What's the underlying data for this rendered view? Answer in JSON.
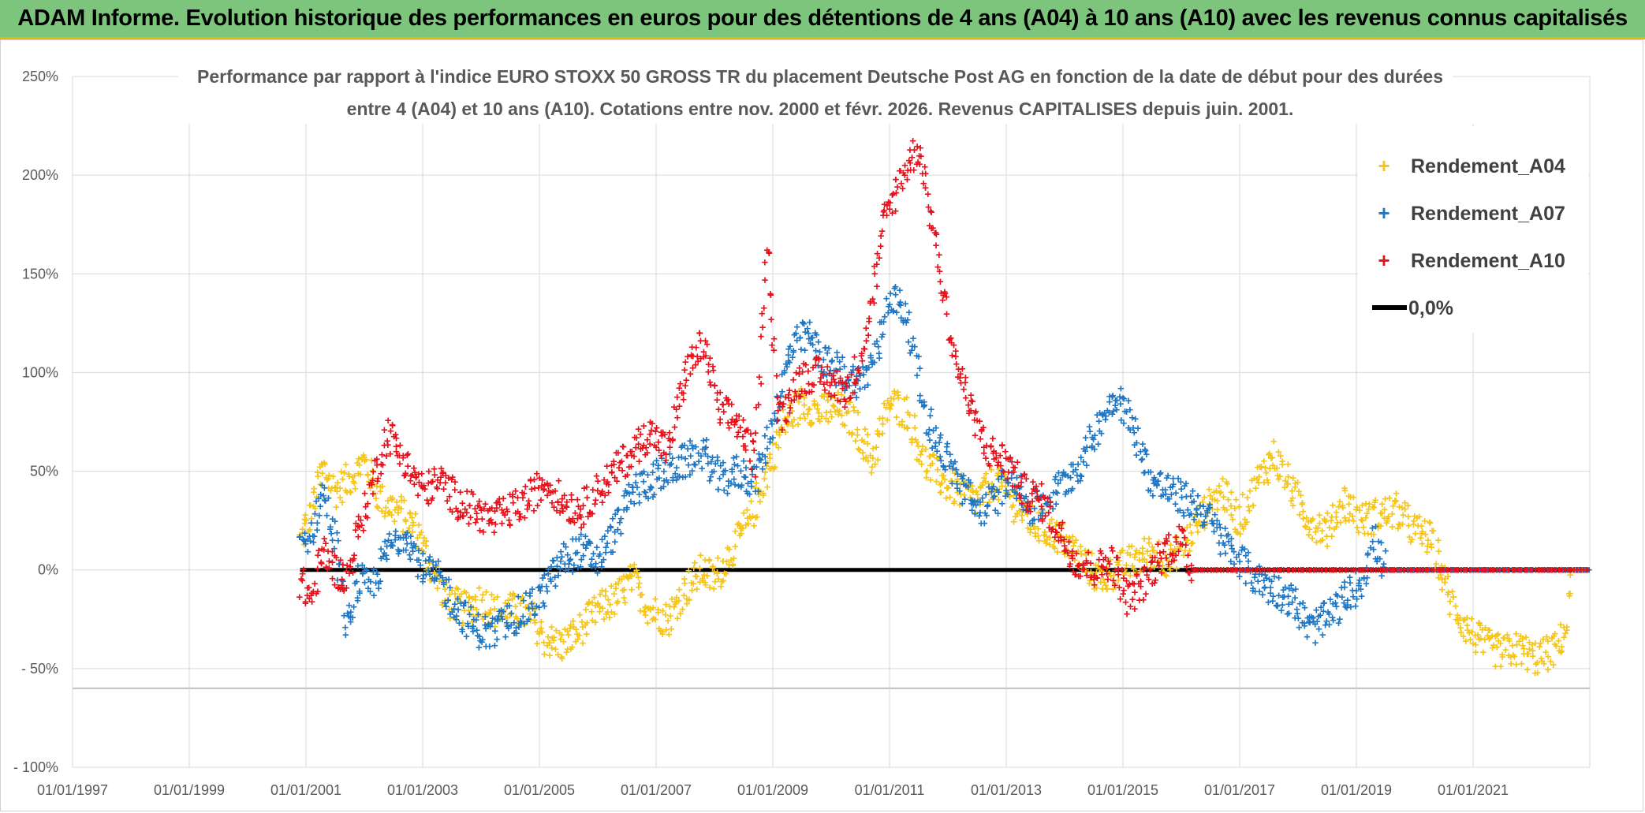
{
  "banner": {
    "title": "ADAM Informe. Evolution historique des performances en euros pour des détentions de 4 ans (A04) à 10 ans (A10) avec les revenus connus capitalisés"
  },
  "colors": {
    "banner_bg": "#7dc57d",
    "a04": "#f5c518",
    "a07": "#1f77c4",
    "a10": "#e8101a",
    "zero": "#000000"
  },
  "chart_data": {
    "type": "scatter",
    "title_line1": "Performance par rapport à l'indice EURO STOXX 50 GROSS TR  du placement Deutsche Post AG en fonction de la date de début pour des durées",
    "title_line2": "entre 4 (A04) et 10 ans (A10). Cotations entre nov. 2000 et févr. 2026. Revenus CAPITALISES depuis juin. 2001.",
    "x_domain_years": [
      1997.0,
      2023.0
    ],
    "x_ticks": [
      {
        "year": 1997,
        "label": "01/01/1997"
      },
      {
        "year": 1999,
        "label": "01/01/1999"
      },
      {
        "year": 2001,
        "label": "01/01/2001"
      },
      {
        "year": 2003,
        "label": "01/01/2003"
      },
      {
        "year": 2005,
        "label": "01/01/2005"
      },
      {
        "year": 2007,
        "label": "01/01/2007"
      },
      {
        "year": 2009,
        "label": "01/01/2009"
      },
      {
        "year": 2011,
        "label": "01/01/2011"
      },
      {
        "year": 2013,
        "label": "01/01/2013"
      },
      {
        "year": 2015,
        "label": "01/01/2015"
      },
      {
        "year": 2017,
        "label": "01/01/2017"
      },
      {
        "year": 2019,
        "label": "01/01/2019"
      },
      {
        "year": 2021,
        "label": "01/01/2021"
      }
    ],
    "y_domain_pct": [
      -100,
      250
    ],
    "y_ticks": [
      {
        "value": 250,
        "label": "250%"
      },
      {
        "value": 200,
        "label": "200%"
      },
      {
        "value": 150,
        "label": "150%"
      },
      {
        "value": 100,
        "label": "100%"
      },
      {
        "value": 50,
        "label": "50%"
      },
      {
        "value": 0,
        "label": "0%"
      },
      {
        "value": -50,
        "label": "- 50%"
      },
      {
        "value": -100,
        "label": "- 100%"
      }
    ],
    "legend": [
      {
        "key": "a04",
        "label": "Rendement_A04",
        "marker": "+"
      },
      {
        "key": "a07",
        "label": "Rendement_A07",
        "marker": "+"
      },
      {
        "key": "a10",
        "label": "Rendement_A10",
        "marker": "+"
      },
      {
        "key": "zero",
        "label": "0,0%",
        "marker": "line"
      }
    ],
    "zero_line": {
      "value": 0,
      "x_start": 2000.9,
      "x_end": 2023.0
    },
    "series": [
      {
        "key": "a04",
        "name": "Rendement_A04",
        "points": [
          [
            2000.9,
            15
          ],
          [
            2001.1,
            30
          ],
          [
            2001.3,
            52
          ],
          [
            2001.5,
            40
          ],
          [
            2001.7,
            45
          ],
          [
            2002.0,
            55
          ],
          [
            2002.3,
            35
          ],
          [
            2002.6,
            30
          ],
          [
            2002.9,
            20
          ],
          [
            2003.1,
            5
          ],
          [
            2003.4,
            -15
          ],
          [
            2003.7,
            -20
          ],
          [
            2004.0,
            -15
          ],
          [
            2004.3,
            -22
          ],
          [
            2004.6,
            -20
          ],
          [
            2004.9,
            -25
          ],
          [
            2005.1,
            -35
          ],
          [
            2005.4,
            -38
          ],
          [
            2005.7,
            -30
          ],
          [
            2006.0,
            -20
          ],
          [
            2006.3,
            -15
          ],
          [
            2006.6,
            -5
          ],
          [
            2006.9,
            -20
          ],
          [
            2007.2,
            -25
          ],
          [
            2007.5,
            -10
          ],
          [
            2007.8,
            0
          ],
          [
            2008.0,
            -5
          ],
          [
            2008.3,
            10
          ],
          [
            2008.6,
            25
          ],
          [
            2008.9,
            50
          ],
          [
            2009.2,
            75
          ],
          [
            2009.5,
            85
          ],
          [
            2009.8,
            80
          ],
          [
            2010.1,
            82
          ],
          [
            2010.4,
            75
          ],
          [
            2010.7,
            55
          ],
          [
            2011.0,
            85
          ],
          [
            2011.3,
            80
          ],
          [
            2011.6,
            55
          ],
          [
            2011.9,
            45
          ],
          [
            2012.2,
            40
          ],
          [
            2012.5,
            35
          ],
          [
            2012.8,
            45
          ],
          [
            2013.1,
            35
          ],
          [
            2013.4,
            25
          ],
          [
            2013.7,
            20
          ],
          [
            2014.0,
            15
          ],
          [
            2014.3,
            5
          ],
          [
            2014.6,
            -5
          ],
          [
            2014.9,
            0
          ],
          [
            2015.2,
            5
          ],
          [
            2015.5,
            10
          ],
          [
            2015.8,
            5
          ],
          [
            2016.1,
            15
          ],
          [
            2016.4,
            30
          ],
          [
            2016.7,
            40
          ],
          [
            2017.0,
            25
          ],
          [
            2017.3,
            45
          ],
          [
            2017.6,
            58
          ],
          [
            2017.9,
            40
          ],
          [
            2018.2,
            25
          ],
          [
            2018.5,
            20
          ],
          [
            2018.8,
            35
          ],
          [
            2019.1,
            25
          ],
          [
            2019.4,
            28
          ],
          [
            2019.7,
            30
          ],
          [
            2020.0,
            20
          ],
          [
            2020.3,
            15
          ],
          [
            2020.6,
            -15
          ],
          [
            2020.9,
            -30
          ],
          [
            2021.2,
            -38
          ],
          [
            2021.5,
            -42
          ],
          [
            2021.8,
            -40
          ],
          [
            2022.1,
            -45
          ],
          [
            2022.4,
            -40
          ],
          [
            2022.6,
            -30
          ],
          [
            2022.7,
            0
          ],
          [
            2023.0,
            0
          ]
        ]
      },
      {
        "key": "a07",
        "name": "Rendement_A07",
        "points": [
          [
            2000.9,
            10
          ],
          [
            2001.1,
            20
          ],
          [
            2001.3,
            40
          ],
          [
            2001.5,
            15
          ],
          [
            2001.7,
            -30
          ],
          [
            2001.9,
            -5
          ],
          [
            2002.1,
            -10
          ],
          [
            2002.4,
            10
          ],
          [
            2002.7,
            20
          ],
          [
            2003.0,
            0
          ],
          [
            2003.3,
            -5
          ],
          [
            2003.6,
            -20
          ],
          [
            2003.9,
            -30
          ],
          [
            2004.2,
            -32
          ],
          [
            2004.5,
            -25
          ],
          [
            2004.8,
            -20
          ],
          [
            2005.1,
            -10
          ],
          [
            2005.4,
            5
          ],
          [
            2005.7,
            10
          ],
          [
            2006.0,
            5
          ],
          [
            2006.3,
            20
          ],
          [
            2006.6,
            40
          ],
          [
            2006.9,
            45
          ],
          [
            2007.2,
            50
          ],
          [
            2007.5,
            55
          ],
          [
            2007.8,
            60
          ],
          [
            2008.1,
            45
          ],
          [
            2008.4,
            50
          ],
          [
            2008.7,
            45
          ],
          [
            2009.0,
            75
          ],
          [
            2009.3,
            110
          ],
          [
            2009.6,
            120
          ],
          [
            2009.9,
            105
          ],
          [
            2010.2,
            100
          ],
          [
            2010.5,
            95
          ],
          [
            2010.8,
            110
          ],
          [
            2011.0,
            140
          ],
          [
            2011.3,
            130
          ],
          [
            2011.6,
            80
          ],
          [
            2011.9,
            60
          ],
          [
            2012.2,
            45
          ],
          [
            2012.5,
            30
          ],
          [
            2012.8,
            35
          ],
          [
            2013.1,
            50
          ],
          [
            2013.4,
            30
          ],
          [
            2013.7,
            35
          ],
          [
            2014.0,
            45
          ],
          [
            2014.3,
            55
          ],
          [
            2014.6,
            75
          ],
          [
            2014.9,
            90
          ],
          [
            2015.2,
            70
          ],
          [
            2015.5,
            45
          ],
          [
            2015.8,
            40
          ],
          [
            2016.1,
            35
          ],
          [
            2016.4,
            30
          ],
          [
            2016.7,
            15
          ],
          [
            2017.0,
            5
          ],
          [
            2017.3,
            -5
          ],
          [
            2017.6,
            -10
          ],
          [
            2017.9,
            -15
          ],
          [
            2018.2,
            -30
          ],
          [
            2018.5,
            -25
          ],
          [
            2018.8,
            -15
          ],
          [
            2019.1,
            -5
          ],
          [
            2019.3,
            15
          ],
          [
            2019.5,
            0
          ],
          [
            2020.0,
            0
          ],
          [
            2023.0,
            0
          ]
        ]
      },
      {
        "key": "a10",
        "name": "Rendement_A10",
        "points": [
          [
            2000.9,
            -5
          ],
          [
            2001.1,
            -15
          ],
          [
            2001.3,
            10
          ],
          [
            2001.5,
            0
          ],
          [
            2001.7,
            -5
          ],
          [
            2001.9,
            20
          ],
          [
            2002.1,
            40
          ],
          [
            2002.4,
            70
          ],
          [
            2002.7,
            55
          ],
          [
            2003.0,
            40
          ],
          [
            2003.3,
            45
          ],
          [
            2003.6,
            35
          ],
          [
            2003.9,
            30
          ],
          [
            2004.2,
            25
          ],
          [
            2004.5,
            30
          ],
          [
            2004.8,
            35
          ],
          [
            2005.1,
            45
          ],
          [
            2005.4,
            35
          ],
          [
            2005.7,
            30
          ],
          [
            2006.0,
            40
          ],
          [
            2006.3,
            50
          ],
          [
            2006.6,
            60
          ],
          [
            2006.9,
            70
          ],
          [
            2007.2,
            60
          ],
          [
            2007.5,
            100
          ],
          [
            2007.8,
            115
          ],
          [
            2008.1,
            80
          ],
          [
            2008.4,
            75
          ],
          [
            2008.7,
            55
          ],
          [
            2008.9,
            170
          ],
          [
            2009.1,
            75
          ],
          [
            2009.4,
            95
          ],
          [
            2009.7,
            100
          ],
          [
            2010.0,
            95
          ],
          [
            2010.3,
            90
          ],
          [
            2010.6,
            120
          ],
          [
            2010.9,
            175
          ],
          [
            2011.2,
            200
          ],
          [
            2011.5,
            215
          ],
          [
            2011.8,
            165
          ],
          [
            2012.1,
            110
          ],
          [
            2012.4,
            80
          ],
          [
            2012.7,
            60
          ],
          [
            2013.0,
            55
          ],
          [
            2013.3,
            40
          ],
          [
            2013.6,
            35
          ],
          [
            2013.9,
            20
          ],
          [
            2014.2,
            5
          ],
          [
            2014.5,
            0
          ],
          [
            2014.8,
            5
          ],
          [
            2015.1,
            -15
          ],
          [
            2015.4,
            -5
          ],
          [
            2015.7,
            10
          ],
          [
            2016.0,
            15
          ],
          [
            2016.2,
            0
          ],
          [
            2018.0,
            0
          ],
          [
            2020.0,
            0
          ],
          [
            2022.0,
            0
          ],
          [
            2023.0,
            0
          ]
        ]
      }
    ]
  }
}
